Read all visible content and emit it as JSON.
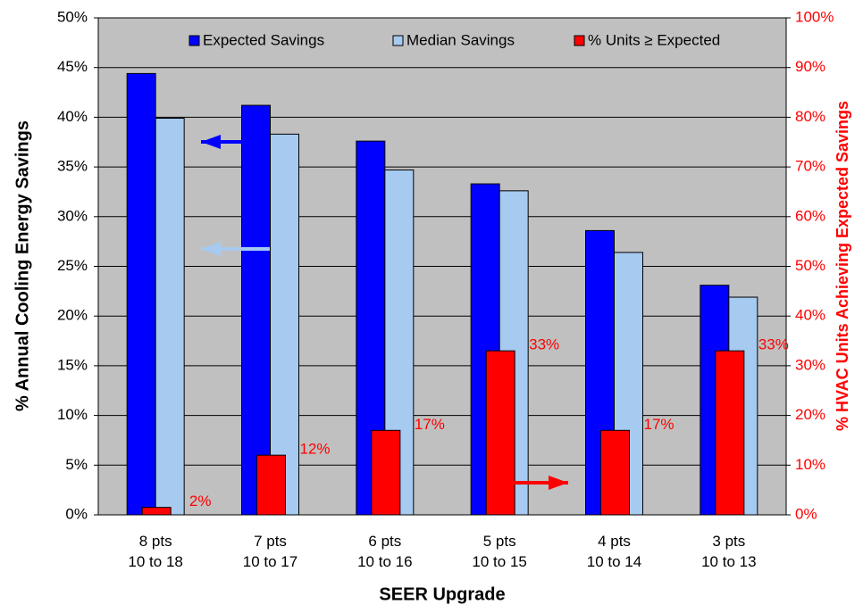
{
  "chart_data": {
    "type": "bar",
    "x_label": "SEER Upgrade",
    "y_label": "% Annual Cooling Energy Savings",
    "y2_label": "% HVAC Units Achieving Expected Savings",
    "categories": [
      "8 pts\n10 to 18",
      "7 pts\n10 to 17",
      "6 pts\n10 to 16",
      "5 pts\n10 to 15",
      "4 pts\n10 to 14",
      "3 pts\n10 to 13"
    ],
    "series": [
      {
        "name": "Expected Savings",
        "color": "#0000ff",
        "values": [
          44.4,
          41.2,
          37.6,
          33.3,
          28.6,
          23.1
        ]
      },
      {
        "name": "Median Savings",
        "color": "#a6caf0",
        "values": [
          39.9,
          38.3,
          34.7,
          32.6,
          26.4,
          21.9
        ]
      },
      {
        "name": "% Units ≥ Expected",
        "color": "#ff0000",
        "axis": "y2",
        "values": [
          1.5,
          12,
          17,
          33,
          17,
          33
        ],
        "value_labels": [
          "2%",
          "12%",
          "17%",
          "33%",
          "17%",
          "33%"
        ]
      }
    ],
    "ylim": [
      0,
      50
    ],
    "yticks": [
      {
        "value": 0,
        "label": "0%"
      },
      {
        "value": 5,
        "label": "5%"
      },
      {
        "value": 10,
        "label": "10%"
      },
      {
        "value": 15,
        "label": "15%"
      },
      {
        "value": 20,
        "label": "20%"
      },
      {
        "value": 25,
        "label": "25%"
      },
      {
        "value": 30,
        "label": "30%"
      },
      {
        "value": 35,
        "label": "35%"
      },
      {
        "value": 40,
        "label": "40%"
      },
      {
        "value": 45,
        "label": "45%"
      },
      {
        "value": 50,
        "label": "50%"
      }
    ],
    "y2lim": [
      0,
      100
    ],
    "y2ticks": [
      {
        "value": 0,
        "label": "0%"
      },
      {
        "value": 10,
        "label": "10%"
      },
      {
        "value": 20,
        "label": "20%"
      },
      {
        "value": 30,
        "label": "30%"
      },
      {
        "value": 40,
        "label": "40%"
      },
      {
        "value": 50,
        "label": "50%"
      },
      {
        "value": 60,
        "label": "60%"
      },
      {
        "value": 70,
        "label": "70%"
      },
      {
        "value": 80,
        "label": "80%"
      },
      {
        "value": 90,
        "label": "90%"
      },
      {
        "value": 100,
        "label": "100%"
      }
    ],
    "grid": true,
    "background": "#c0c0c0",
    "legend": "top-right"
  }
}
